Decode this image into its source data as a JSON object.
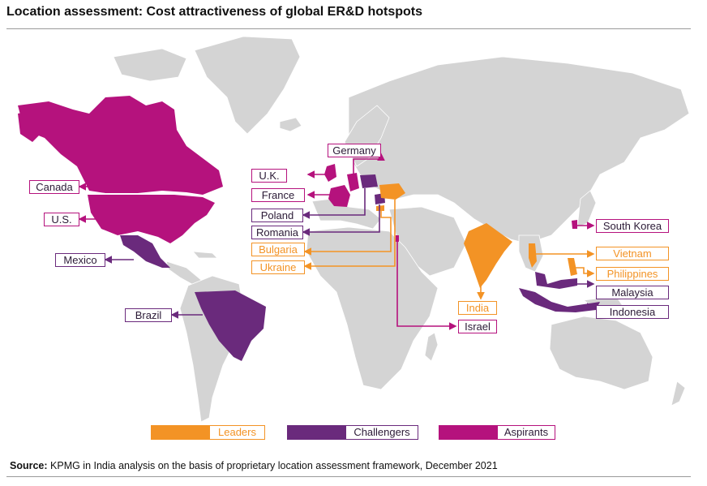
{
  "title": "Location assessment: Cost attractiveness of global ER&D hotspots",
  "colors": {
    "leaders": "#f39325",
    "challengers": "#6a2a7c",
    "aspirants": "#b5127d",
    "land": "#d4d4d4"
  },
  "countries": {
    "canada": {
      "label": "Canada",
      "category": "Aspirants"
    },
    "us": {
      "label": "U.S.",
      "category": "Aspirants"
    },
    "mexico": {
      "label": "Mexico",
      "category": "Challengers"
    },
    "brazil": {
      "label": "Brazil",
      "category": "Challengers"
    },
    "germany": {
      "label": "Germany",
      "category": "Aspirants"
    },
    "uk": {
      "label": "U.K.",
      "category": "Aspirants"
    },
    "france": {
      "label": "France",
      "category": "Aspirants"
    },
    "poland": {
      "label": "Poland",
      "category": "Challengers"
    },
    "romania": {
      "label": "Romania",
      "category": "Challengers"
    },
    "bulgaria": {
      "label": "Bulgaria",
      "category": "Leaders"
    },
    "ukraine": {
      "label": "Ukraine",
      "category": "Leaders"
    },
    "india": {
      "label": "India",
      "category": "Leaders"
    },
    "israel": {
      "label": "Israel",
      "category": "Aspirants"
    },
    "south_korea": {
      "label": "South Korea",
      "category": "Aspirants"
    },
    "vietnam": {
      "label": "Vietnam",
      "category": "Leaders"
    },
    "philippines": {
      "label": "Philippines",
      "category": "Leaders"
    },
    "malaysia": {
      "label": "Malaysia",
      "category": "Challengers"
    },
    "indonesia": {
      "label": "Indonesia",
      "category": "Challengers"
    }
  },
  "legend": {
    "leaders": "Leaders",
    "challengers": "Challengers",
    "aspirants": "Aspirants"
  },
  "source": {
    "prefix": "Source:",
    "text": " KPMG in India analysis on the basis of proprietary location assessment framework, December 2021"
  }
}
